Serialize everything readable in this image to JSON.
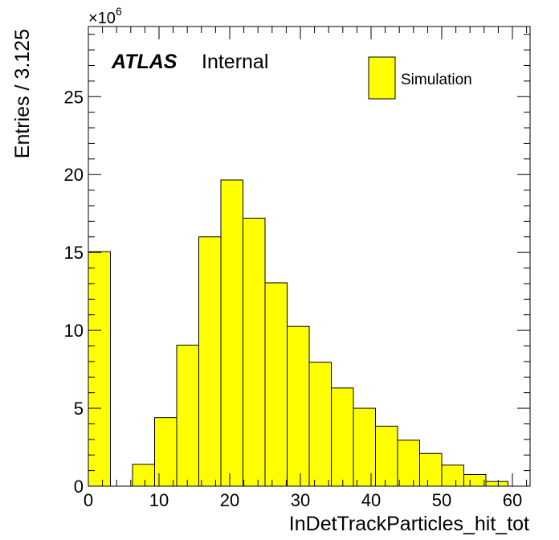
{
  "chart_data": {
    "type": "bar",
    "style": "histogram",
    "bin_width": 3.125,
    "bin_edges": [
      0,
      3.125,
      6.25,
      9.375,
      12.5,
      15.625,
      18.75,
      21.875,
      25,
      28.125,
      31.25,
      34.375,
      37.5,
      40.625,
      43.75,
      46.875,
      50,
      53.125,
      56.25,
      59.375
    ],
    "values": [
      15.05,
      0,
      1.4,
      4.4,
      9.05,
      16.0,
      19.65,
      17.2,
      13.05,
      10.25,
      7.95,
      6.3,
      5.0,
      3.85,
      2.95,
      2.1,
      1.35,
      0.75,
      0.3
    ],
    "fill_color": "#ffff00",
    "edge_color": "#000000",
    "xlim": [
      0,
      62.5
    ],
    "ylim": [
      0,
      29.5
    ],
    "x_ticks": [
      0,
      10,
      20,
      30,
      40,
      50,
      60
    ],
    "x_tick_labels": [
      "0",
      "10",
      "20",
      "30",
      "40",
      "50",
      "60"
    ],
    "y_ticks": [
      0,
      5,
      10,
      15,
      20,
      25
    ],
    "y_tick_labels": [
      "0",
      "5",
      "10",
      "15",
      "20",
      "25"
    ],
    "y_multiplier": "×10",
    "y_multiplier_exponent": "6",
    "xlabel": "InDetTrackParticles_hit_tot",
    "ylabel": "Entries / 3.125",
    "label_bold": "ATLAS",
    "label_plain": "Internal",
    "legend": [
      {
        "name": "Simulation",
        "color": "#ffff00"
      }
    ],
    "legend_position": "top-right",
    "grid": false
  }
}
